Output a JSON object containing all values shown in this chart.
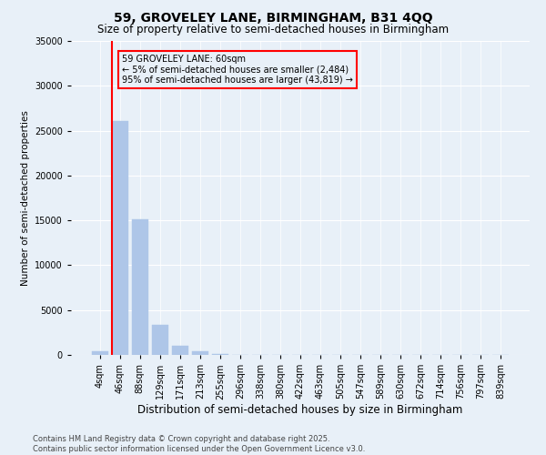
{
  "title": "59, GROVELEY LANE, BIRMINGHAM, B31 4QQ",
  "subtitle": "Size of property relative to semi-detached houses in Birmingham",
  "xlabel": "Distribution of semi-detached houses by size in Birmingham",
  "ylabel": "Number of semi-detached properties",
  "categories": [
    "4sqm",
    "46sqm",
    "88sqm",
    "129sqm",
    "171sqm",
    "213sqm",
    "255sqm",
    "296sqm",
    "338sqm",
    "380sqm",
    "422sqm",
    "463sqm",
    "505sqm",
    "547sqm",
    "589sqm",
    "630sqm",
    "672sqm",
    "714sqm",
    "756sqm",
    "797sqm",
    "839sqm"
  ],
  "values": [
    400,
    26100,
    15100,
    3300,
    1050,
    450,
    150,
    0,
    0,
    0,
    0,
    0,
    0,
    0,
    0,
    0,
    0,
    0,
    0,
    0,
    0
  ],
  "bar_color": "#aec6e8",
  "bar_edgecolor": "#aec6e8",
  "vline_color": "red",
  "ylim": [
    0,
    35000
  ],
  "yticks": [
    0,
    5000,
    10000,
    15000,
    20000,
    25000,
    30000,
    35000
  ],
  "annotation_text": "59 GROVELEY LANE: 60sqm\n← 5% of semi-detached houses are smaller (2,484)\n95% of semi-detached houses are larger (43,819) →",
  "annotation_box_color": "red",
  "background_color": "#e8f0f8",
  "footer_text": "Contains HM Land Registry data © Crown copyright and database right 2025.\nContains public sector information licensed under the Open Government Licence v3.0.",
  "title_fontsize": 10,
  "subtitle_fontsize": 8.5,
  "xlabel_fontsize": 8.5,
  "ylabel_fontsize": 7.5,
  "tick_fontsize": 7,
  "footer_fontsize": 6,
  "annotation_fontsize": 7
}
